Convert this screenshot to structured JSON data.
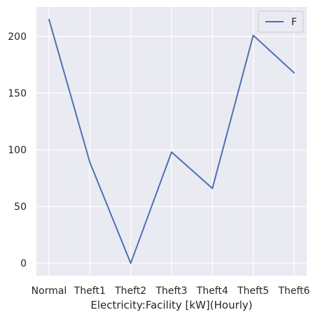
{
  "chart_data": {
    "type": "line",
    "title": "",
    "xlabel": "Electricity:Facility [kW](Hourly)",
    "ylabel": "",
    "categories": [
      "Normal",
      "Theft1",
      "Theft2",
      "Theft3",
      "Theft4",
      "Theft5",
      "Theft6"
    ],
    "series": [
      {
        "name": "F",
        "values": [
          215,
          89,
          0,
          98,
          66,
          201,
          168
        ],
        "color": "#4c72b0"
      }
    ],
    "ylim": [
      -11,
      226
    ],
    "yticks": [
      0,
      50,
      100,
      150,
      200
    ],
    "grid": true,
    "legend": "top-right",
    "background": "#eaeaf2",
    "grid_color": "#ffffff"
  }
}
